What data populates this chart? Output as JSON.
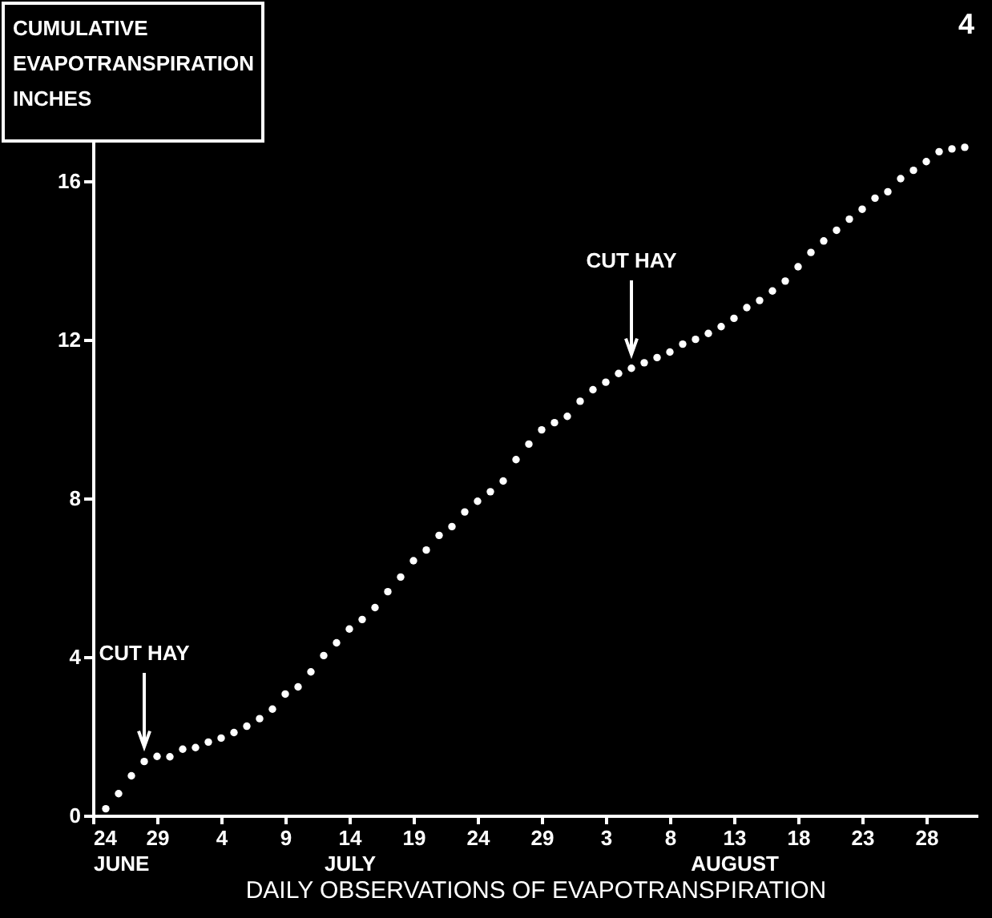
{
  "chart_data": {
    "type": "scatter",
    "ylabel": "CUMULATIVE EVAPOTRANSPIRATION INCHES",
    "xlabel": "DAILY OBSERVATIONS OF EVAPOTRANSPIRATION",
    "x": [
      "--06-25",
      "--06-26",
      "--06-27",
      "--06-28",
      "--06-29",
      "--06-30",
      "--07-01",
      "--07-02",
      "--07-03",
      "--07-04",
      "--07-05",
      "--07-06",
      "--07-07",
      "--07-08",
      "--07-09",
      "--07-10",
      "--07-11",
      "--07-12",
      "--07-13",
      "--07-14",
      "--07-15",
      "--07-16",
      "--07-17",
      "--07-18",
      "--07-19",
      "--07-20",
      "--07-21",
      "--07-22",
      "--07-23",
      "--07-24",
      "--07-25",
      "--07-26",
      "--07-27",
      "--07-28",
      "--07-29",
      "--07-30",
      "--07-31",
      "--08-01",
      "--08-02",
      "--08-03",
      "--08-04",
      "--08-05",
      "--08-06",
      "--08-07",
      "--08-08",
      "--08-09",
      "--08-10",
      "--08-11",
      "--08-12",
      "--08-13",
      "--08-14",
      "--08-15",
      "--08-16",
      "--08-17",
      "--08-18",
      "--08-19",
      "--08-20",
      "--08-21",
      "--08-22",
      "--08-23",
      "--08-24",
      "--08-25",
      "--08-26",
      "--08-27",
      "--08-28",
      "--08-29",
      "--08-30",
      "--08-31"
    ],
    "series": [
      {
        "color": "#ffffff",
        "values": [
          0.17,
          0.55,
          1.0,
          1.36,
          1.49,
          1.48,
          1.67,
          1.71,
          1.85,
          1.95,
          2.09,
          2.25,
          2.44,
          2.68,
          3.06,
          3.24,
          3.62,
          4.03,
          4.35,
          4.7,
          4.94,
          5.24,
          5.64,
          6.01,
          6.42,
          6.69,
          7.06,
          7.28,
          7.65,
          7.92,
          8.16,
          8.43,
          8.97,
          9.36,
          9.72,
          9.9,
          10.06,
          10.44,
          10.73,
          10.92,
          11.14,
          11.27,
          11.41,
          11.54,
          11.68,
          11.88,
          12.0,
          12.15,
          12.32,
          12.53,
          12.8,
          12.98,
          13.22,
          13.47,
          13.83,
          14.19,
          14.48,
          14.75,
          15.03,
          15.28,
          15.56,
          15.72,
          16.05,
          16.26,
          16.48,
          16.73,
          16.8,
          16.84
        ]
      }
    ],
    "xlim": [
      "--06-24",
      "--09-01"
    ],
    "xticks": [
      {
        "value": "--06-24",
        "label": "24\nJUNE"
      },
      {
        "value": "--06-29",
        "label": "29"
      },
      {
        "value": "--07-04",
        "label": "4"
      },
      {
        "value": "--07-09",
        "label": "9"
      },
      {
        "value": "--07-14",
        "label": "14\nJULY"
      },
      {
        "value": "--07-19",
        "label": "19"
      },
      {
        "value": "--07-24",
        "label": "24"
      },
      {
        "value": "--07-29",
        "label": "29"
      },
      {
        "value": "--08-03",
        "label": "3"
      },
      {
        "value": "--08-08",
        "label": "8"
      },
      {
        "value": "--08-13",
        "label": "13\nAUGUST"
      },
      {
        "value": "--08-18",
        "label": "18"
      },
      {
        "value": "--08-23",
        "label": "23"
      },
      {
        "value": "--08-28",
        "label": "28"
      }
    ],
    "ylim": [
      0,
      17
    ],
    "yticks": [
      0,
      4,
      8,
      12,
      16
    ],
    "marker": "circle",
    "grid": false,
    "legend": false,
    "annotations": [
      "CUT HAY",
      "CUT HAY",
      "4"
    ]
  }
}
